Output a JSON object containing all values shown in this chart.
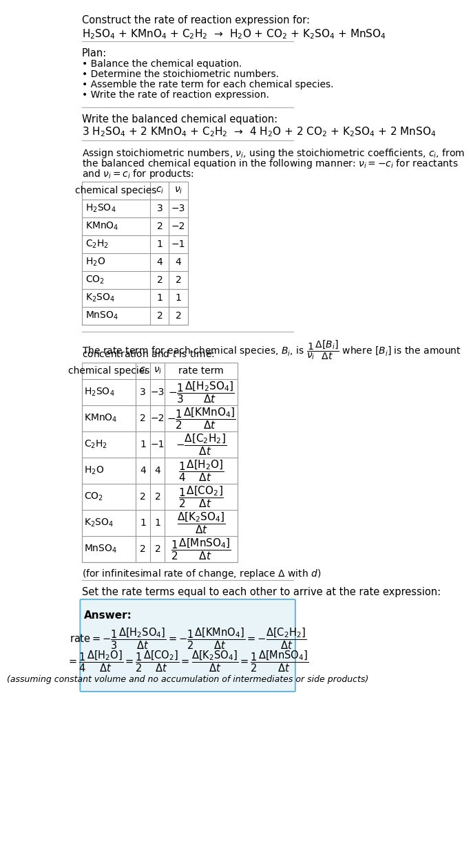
{
  "title_line1": "Construct the rate of reaction expression for:",
  "reaction_unbalanced": "H$_2$SO$_4$ + KMnO$_4$ + C$_2$H$_2$  →  H$_2$O + CO$_2$ + K$_2$SO$_4$ + MnSO$_4$",
  "plan_title": "Plan:",
  "plan_items": [
    "• Balance the chemical equation.",
    "• Determine the stoichiometric numbers.",
    "• Assemble the rate term for each chemical species.",
    "• Write the rate of reaction expression."
  ],
  "balanced_label": "Write the balanced chemical equation:",
  "reaction_balanced": "3 H$_2$SO$_4$ + 2 KMnO$_4$ + C$_2$H$_2$  →  4 H$_2$O + 2 CO$_2$ + K$_2$SO$_4$ + 2 MnSO$_4$",
  "stoich_intro": "Assign stoichiometric numbers, $\\nu_i$, using the stoichiometric coefficients, $c_i$, from\nthe balanced chemical equation in the following manner: $\\nu_i = -c_i$ for reactants\nand $\\nu_i = c_i$ for products:",
  "table1_headers": [
    "chemical species",
    "$c_i$",
    "$\\nu_i$"
  ],
  "table1_data": [
    [
      "H$_2$SO$_4$",
      "3",
      "−3"
    ],
    [
      "KMnO$_4$",
      "2",
      "−2"
    ],
    [
      "C$_2$H$_2$",
      "1",
      "−1"
    ],
    [
      "H$_2$O",
      "4",
      "4"
    ],
    [
      "CO$_2$",
      "2",
      "2"
    ],
    [
      "K$_2$SO$_4$",
      "1",
      "1"
    ],
    [
      "MnSO$_4$",
      "2",
      "2"
    ]
  ],
  "rate_term_intro": "The rate term for each chemical species, $B_i$, is $\\dfrac{1}{\\nu_i}\\dfrac{\\Delta[B_i]}{\\Delta t}$ where $[B_i]$ is the amount\nconcentration and $t$ is time:",
  "table2_headers": [
    "chemical species",
    "$c_i$",
    "$\\nu_i$",
    "rate term"
  ],
  "table2_data": [
    [
      "H$_2$SO$_4$",
      "3",
      "−3",
      "$-\\dfrac{1}{3}\\dfrac{\\Delta[\\mathrm{H_2SO_4}]}{\\Delta t}$"
    ],
    [
      "KMnO$_4$",
      "2",
      "−2",
      "$-\\dfrac{1}{2}\\dfrac{\\Delta[\\mathrm{KMnO_4}]}{\\Delta t}$"
    ],
    [
      "C$_2$H$_2$",
      "1",
      "−1",
      "$-\\dfrac{\\Delta[\\mathrm{C_2H_2}]}{\\Delta t}$"
    ],
    [
      "H$_2$O",
      "4",
      "4",
      "$\\dfrac{1}{4}\\dfrac{\\Delta[\\mathrm{H_2O}]}{\\Delta t}$"
    ],
    [
      "CO$_2$",
      "2",
      "2",
      "$\\dfrac{1}{2}\\dfrac{\\Delta[\\mathrm{CO_2}]}{\\Delta t}$"
    ],
    [
      "K$_2$SO$_4$",
      "1",
      "1",
      "$\\dfrac{\\Delta[\\mathrm{K_2SO_4}]}{\\Delta t}$"
    ],
    [
      "MnSO$_4$",
      "2",
      "2",
      "$\\dfrac{1}{2}\\dfrac{\\Delta[\\mathrm{MnSO_4}]}{\\Delta t}$"
    ]
  ],
  "infinitesimal_note": "(for infinitesimal rate of change, replace Δ with $d$)",
  "set_equal_text": "Set the rate terms equal to each other to arrive at the rate expression:",
  "answer_box_color": "#e8f4f8",
  "answer_box_border": "#6bb8d4",
  "answer_label": "Answer:",
  "answer_line1": "$\\mathrm{rate} = -\\dfrac{1}{3}\\dfrac{\\Delta[\\mathrm{H_2SO_4}]}{\\Delta t} = -\\dfrac{1}{2}\\dfrac{\\Delta[\\mathrm{KMnO_4}]}{\\Delta t} = -\\dfrac{\\Delta[\\mathrm{C_2H_2}]}{\\Delta t}$",
  "answer_line2": "$= \\dfrac{1}{4}\\dfrac{\\Delta[\\mathrm{H_2O}]}{\\Delta t} = \\dfrac{1}{2}\\dfrac{\\Delta[\\mathrm{CO_2}]}{\\Delta t} = \\dfrac{\\Delta[\\mathrm{K_2SO_4}]}{\\Delta t} = \\dfrac{1}{2}\\dfrac{\\Delta[\\mathrm{MnSO_4}]}{\\Delta t}$",
  "answer_footnote": "(assuming constant volume and no accumulation of intermediates or side products)",
  "bg_color": "#ffffff",
  "text_color": "#000000",
  "font_size": 10,
  "table_font_size": 10
}
